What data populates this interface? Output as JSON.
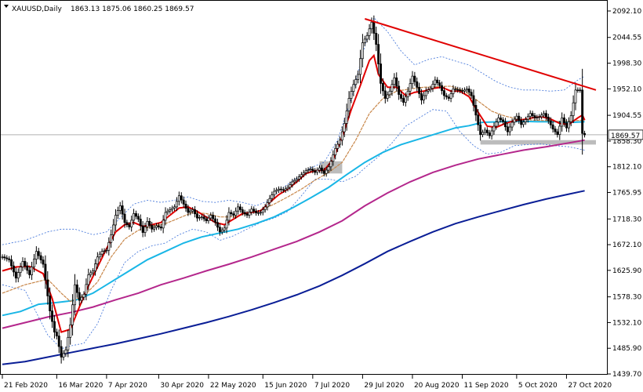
{
  "header": {
    "symbol": "XAUUSD,Daily",
    "ohlc": "1863.13 1875.06 1860.25 1869.57"
  },
  "chart_data": {
    "type": "line",
    "title": "",
    "xlabel": "",
    "ylabel": "",
    "instrument": "XAUUSD",
    "timeframe": "Daily",
    "last_price": 1869.57,
    "last_price_label": "1869.57",
    "ylim": [
      1439.7,
      2092.1
    ],
    "y_ticks": [
      "2092.10",
      "2044.55",
      "1998.30",
      "1952.10",
      "1904.55",
      "1858.30",
      "1812.10",
      "1765.95",
      "1718.30",
      "1672.10",
      "1625.90",
      "1578.30",
      "1532.10",
      "1485.90",
      "1439.70"
    ],
    "x_ticks": [
      {
        "label": "21 Feb 2020",
        "day": 0
      },
      {
        "label": "16 Mar 2020",
        "day": 24
      },
      {
        "label": "7 Apr 2020",
        "day": 46
      },
      {
        "label": "30 Apr 2020",
        "day": 69
      },
      {
        "label": "22 May 2020",
        "day": 91
      },
      {
        "label": "15 Jun 2020",
        "day": 115
      },
      {
        "label": "7 Jul 2020",
        "day": 137
      },
      {
        "label": "29 Jul 2020",
        "day": 159
      },
      {
        "label": "20 Aug 2020",
        "day": 181
      },
      {
        "label": "11 Sep 2020",
        "day": 203
      },
      {
        "label": "5 Oct 2020",
        "day": 227
      },
      {
        "label": "27 Oct 2020",
        "day": 249
      }
    ],
    "xlim_days": [
      0,
      262
    ],
    "colors": {
      "candle": "#000000",
      "ma_fast": "#e00000",
      "ma_mid": "#c8874a",
      "ma_50": "#19b6e6",
      "ma_100": "#b4278c",
      "ma_200": "#0a1e96",
      "bollinger": "#3a6fd8",
      "trendline": "#e00000",
      "zone": "#b8b8b8",
      "price_line": "#b0b0b0"
    },
    "close_path": [
      [
        0,
        1650
      ],
      [
        3,
        1645
      ],
      [
        6,
        1612
      ],
      [
        9,
        1642
      ],
      [
        12,
        1618
      ],
      [
        15,
        1660
      ],
      [
        18,
        1637
      ],
      [
        20,
        1580
      ],
      [
        21,
        1553
      ],
      [
        23,
        1515
      ],
      [
        24,
        1508
      ],
      [
        26,
        1470
      ],
      [
        28,
        1483
      ],
      [
        30,
        1528
      ],
      [
        32,
        1600
      ],
      [
        34,
        1572
      ],
      [
        36,
        1583
      ],
      [
        38,
        1618
      ],
      [
        40,
        1625
      ],
      [
        42,
        1650
      ],
      [
        44,
        1660
      ],
      [
        46,
        1662
      ],
      [
        48,
        1690
      ],
      [
        50,
        1725
      ],
      [
        52,
        1742
      ],
      [
        54,
        1712
      ],
      [
        56,
        1704
      ],
      [
        58,
        1728
      ],
      [
        60,
        1718
      ],
      [
        62,
        1694
      ],
      [
        64,
        1714
      ],
      [
        66,
        1700
      ],
      [
        68,
        1706
      ],
      [
        70,
        1702
      ],
      [
        72,
        1730
      ],
      [
        74,
        1735
      ],
      [
        76,
        1740
      ],
      [
        78,
        1760
      ],
      [
        80,
        1745
      ],
      [
        82,
        1730
      ],
      [
        84,
        1735
      ],
      [
        86,
        1720
      ],
      [
        88,
        1722
      ],
      [
        90,
        1715
      ],
      [
        92,
        1725
      ],
      [
        94,
        1712
      ],
      [
        96,
        1695
      ],
      [
        98,
        1702
      ],
      [
        100,
        1730
      ],
      [
        102,
        1725
      ],
      [
        104,
        1740
      ],
      [
        106,
        1730
      ],
      [
        108,
        1725
      ],
      [
        110,
        1736
      ],
      [
        112,
        1729
      ],
      [
        114,
        1730
      ],
      [
        116,
        1740
      ],
      [
        118,
        1755
      ],
      [
        120,
        1768
      ],
      [
        122,
        1772
      ],
      [
        124,
        1770
      ],
      [
        126,
        1775
      ],
      [
        128,
        1785
      ],
      [
        130,
        1790
      ],
      [
        132,
        1798
      ],
      [
        134,
        1805
      ],
      [
        136,
        1808
      ],
      [
        138,
        1802
      ],
      [
        140,
        1810
      ],
      [
        142,
        1800
      ],
      [
        144,
        1812
      ],
      [
        145,
        1822
      ],
      [
        147,
        1845
      ],
      [
        149,
        1860
      ],
      [
        151,
        1890
      ],
      [
        153,
        1935
      ],
      [
        155,
        1960
      ],
      [
        157,
        1978
      ],
      [
        159,
        2035
      ],
      [
        161,
        2048
      ],
      [
        163,
        2072
      ],
      [
        165,
        2032
      ],
      [
        167,
        1962
      ],
      [
        169,
        1935
      ],
      [
        171,
        1948
      ],
      [
        173,
        1972
      ],
      [
        175,
        1942
      ],
      [
        177,
        1928
      ],
      [
        179,
        1948
      ],
      [
        181,
        1975
      ],
      [
        183,
        1955
      ],
      [
        185,
        1932
      ],
      [
        187,
        1948
      ],
      [
        189,
        1953
      ],
      [
        191,
        1968
      ],
      [
        193,
        1958
      ],
      [
        195,
        1940
      ],
      [
        197,
        1935
      ],
      [
        199,
        1952
      ],
      [
        201,
        1950
      ],
      [
        203,
        1948
      ],
      [
        205,
        1952
      ],
      [
        207,
        1940
      ],
      [
        209,
        1905
      ],
      [
        211,
        1870
      ],
      [
        213,
        1878
      ],
      [
        215,
        1868
      ],
      [
        217,
        1885
      ],
      [
        219,
        1900
      ],
      [
        221,
        1893
      ],
      [
        223,
        1875
      ],
      [
        225,
        1892
      ],
      [
        227,
        1903
      ],
      [
        229,
        1888
      ],
      [
        231,
        1897
      ],
      [
        233,
        1908
      ],
      [
        235,
        1900
      ],
      [
        237,
        1902
      ],
      [
        239,
        1908
      ],
      [
        241,
        1895
      ],
      [
        243,
        1880
      ],
      [
        245,
        1870
      ],
      [
        247,
        1900
      ],
      [
        249,
        1882
      ],
      [
        251,
        1904
      ],
      [
        253,
        1950
      ],
      [
        255,
        1950
      ],
      [
        256,
        1872
      ],
      [
        257,
        1869.57
      ]
    ],
    "ma_fast_path": [
      [
        0,
        1625
      ],
      [
        6,
        1632
      ],
      [
        12,
        1633
      ],
      [
        18,
        1620
      ],
      [
        22,
        1575
      ],
      [
        26,
        1515
      ],
      [
        30,
        1520
      ],
      [
        34,
        1560
      ],
      [
        38,
        1598
      ],
      [
        42,
        1632
      ],
      [
        46,
        1665
      ],
      [
        50,
        1695
      ],
      [
        54,
        1708
      ],
      [
        58,
        1712
      ],
      [
        62,
        1705
      ],
      [
        66,
        1708
      ],
      [
        70,
        1712
      ],
      [
        74,
        1725
      ],
      [
        78,
        1738
      ],
      [
        82,
        1740
      ],
      [
        86,
        1732
      ],
      [
        90,
        1722
      ],
      [
        94,
        1712
      ],
      [
        98,
        1708
      ],
      [
        102,
        1718
      ],
      [
        106,
        1728
      ],
      [
        110,
        1730
      ],
      [
        114,
        1733
      ],
      [
        118,
        1748
      ],
      [
        122,
        1762
      ],
      [
        126,
        1772
      ],
      [
        130,
        1785
      ],
      [
        134,
        1800
      ],
      [
        138,
        1805
      ],
      [
        142,
        1806
      ],
      [
        146,
        1825
      ],
      [
        150,
        1866
      ],
      [
        154,
        1915
      ],
      [
        158,
        1958
      ],
      [
        162,
        2003
      ],
      [
        164,
        2012
      ],
      [
        166,
        1978
      ],
      [
        170,
        1955
      ],
      [
        174,
        1955
      ],
      [
        178,
        1940
      ],
      [
        182,
        1946
      ],
      [
        186,
        1948
      ],
      [
        190,
        1953
      ],
      [
        194,
        1955
      ],
      [
        198,
        1948
      ],
      [
        202,
        1948
      ],
      [
        206,
        1938
      ],
      [
        210,
        1910
      ],
      [
        214,
        1885
      ],
      [
        218,
        1883
      ],
      [
        222,
        1890
      ],
      [
        226,
        1895
      ],
      [
        230,
        1897
      ],
      [
        234,
        1900
      ],
      [
        238,
        1902
      ],
      [
        242,
        1898
      ],
      [
        246,
        1890
      ],
      [
        250,
        1888
      ],
      [
        254,
        1900
      ],
      [
        256,
        1905
      ],
      [
        257,
        1896
      ]
    ],
    "ma_mid_path": [
      [
        0,
        1585
      ],
      [
        10,
        1600
      ],
      [
        20,
        1610
      ],
      [
        26,
        1585
      ],
      [
        30,
        1570
      ],
      [
        36,
        1580
      ],
      [
        42,
        1605
      ],
      [
        48,
        1650
      ],
      [
        54,
        1682
      ],
      [
        60,
        1698
      ],
      [
        66,
        1705
      ],
      [
        72,
        1710
      ],
      [
        78,
        1720
      ],
      [
        84,
        1730
      ],
      [
        90,
        1728
      ],
      [
        96,
        1722
      ],
      [
        102,
        1722
      ],
      [
        108,
        1728
      ],
      [
        114,
        1734
      ],
      [
        120,
        1745
      ],
      [
        126,
        1758
      ],
      [
        132,
        1772
      ],
      [
        138,
        1788
      ],
      [
        144,
        1802
      ],
      [
        150,
        1820
      ],
      [
        156,
        1860
      ],
      [
        162,
        1908
      ],
      [
        168,
        1935
      ],
      [
        174,
        1948
      ],
      [
        180,
        1952
      ],
      [
        186,
        1955
      ],
      [
        192,
        1956
      ],
      [
        198,
        1957
      ],
      [
        204,
        1948
      ],
      [
        210,
        1930
      ],
      [
        216,
        1912
      ],
      [
        222,
        1903
      ],
      [
        228,
        1898
      ],
      [
        234,
        1896
      ],
      [
        240,
        1895
      ],
      [
        246,
        1893
      ],
      [
        252,
        1895
      ],
      [
        257,
        1896
      ]
    ],
    "ma_50_path": [
      [
        0,
        1545
      ],
      [
        8,
        1552
      ],
      [
        16,
        1565
      ],
      [
        24,
        1568
      ],
      [
        32,
        1572
      ],
      [
        40,
        1585
      ],
      [
        48,
        1605
      ],
      [
        56,
        1625
      ],
      [
        64,
        1645
      ],
      [
        72,
        1660
      ],
      [
        80,
        1675
      ],
      [
        88,
        1686
      ],
      [
        96,
        1693
      ],
      [
        104,
        1700
      ],
      [
        112,
        1710
      ],
      [
        120,
        1722
      ],
      [
        128,
        1738
      ],
      [
        136,
        1756
      ],
      [
        144,
        1775
      ],
      [
        152,
        1798
      ],
      [
        160,
        1820
      ],
      [
        168,
        1838
      ],
      [
        176,
        1852
      ],
      [
        184,
        1862
      ],
      [
        192,
        1872
      ],
      [
        200,
        1882
      ],
      [
        206,
        1886
      ],
      [
        212,
        1892
      ],
      [
        220,
        1893
      ],
      [
        228,
        1894
      ],
      [
        236,
        1893
      ],
      [
        244,
        1893
      ],
      [
        252,
        1892
      ],
      [
        257,
        1893
      ]
    ],
    "ma_100_path": [
      [
        0,
        1522
      ],
      [
        10,
        1532
      ],
      [
        20,
        1542
      ],
      [
        30,
        1550
      ],
      [
        40,
        1560
      ],
      [
        50,
        1573
      ],
      [
        60,
        1585
      ],
      [
        70,
        1600
      ],
      [
        80,
        1612
      ],
      [
        90,
        1625
      ],
      [
        100,
        1637
      ],
      [
        110,
        1650
      ],
      [
        120,
        1664
      ],
      [
        130,
        1678
      ],
      [
        140,
        1695
      ],
      [
        150,
        1715
      ],
      [
        160,
        1742
      ],
      [
        170,
        1765
      ],
      [
        180,
        1785
      ],
      [
        190,
        1802
      ],
      [
        200,
        1815
      ],
      [
        210,
        1826
      ],
      [
        220,
        1834
      ],
      [
        230,
        1842
      ],
      [
        240,
        1848
      ],
      [
        250,
        1855
      ],
      [
        257,
        1860
      ]
    ],
    "ma_200_path": [
      [
        0,
        1457
      ],
      [
        10,
        1462
      ],
      [
        20,
        1470
      ],
      [
        30,
        1478
      ],
      [
        40,
        1486
      ],
      [
        50,
        1494
      ],
      [
        60,
        1503
      ],
      [
        70,
        1512
      ],
      [
        80,
        1522
      ],
      [
        90,
        1532
      ],
      [
        100,
        1543
      ],
      [
        110,
        1555
      ],
      [
        120,
        1568
      ],
      [
        130,
        1582
      ],
      [
        140,
        1598
      ],
      [
        150,
        1617
      ],
      [
        160,
        1638
      ],
      [
        170,
        1660
      ],
      [
        180,
        1678
      ],
      [
        190,
        1695
      ],
      [
        200,
        1710
      ],
      [
        210,
        1722
      ],
      [
        220,
        1733
      ],
      [
        230,
        1744
      ],
      [
        240,
        1754
      ],
      [
        250,
        1763
      ],
      [
        257,
        1769
      ]
    ],
    "bollinger_upper_path": [
      [
        0,
        1672
      ],
      [
        10,
        1680
      ],
      [
        20,
        1695
      ],
      [
        26,
        1700
      ],
      [
        32,
        1700
      ],
      [
        40,
        1690
      ],
      [
        46,
        1695
      ],
      [
        52,
        1720
      ],
      [
        58,
        1745
      ],
      [
        64,
        1752
      ],
      [
        70,
        1748
      ],
      [
        76,
        1752
      ],
      [
        82,
        1758
      ],
      [
        88,
        1750
      ],
      [
        94,
        1748
      ],
      [
        100,
        1752
      ],
      [
        106,
        1748
      ],
      [
        112,
        1742
      ],
      [
        118,
        1752
      ],
      [
        124,
        1775
      ],
      [
        130,
        1792
      ],
      [
        136,
        1810
      ],
      [
        142,
        1820
      ],
      [
        148,
        1860
      ],
      [
        154,
        1935
      ],
      [
        160,
        2030
      ],
      [
        164,
        2080
      ],
      [
        170,
        2055
      ],
      [
        176,
        2020
      ],
      [
        182,
        1995
      ],
      [
        188,
        2005
      ],
      [
        194,
        2010
      ],
      [
        200,
        2002
      ],
      [
        206,
        1995
      ],
      [
        212,
        1980
      ],
      [
        218,
        1965
      ],
      [
        224,
        1955
      ],
      [
        230,
        1950
      ],
      [
        236,
        1950
      ],
      [
        242,
        1948
      ],
      [
        248,
        1950
      ],
      [
        254,
        1968
      ],
      [
        257,
        1975
      ]
    ],
    "bollinger_lower_path": [
      [
        0,
        1600
      ],
      [
        10,
        1590
      ],
      [
        20,
        1510
      ],
      [
        26,
        1485
      ],
      [
        30,
        1490
      ],
      [
        36,
        1495
      ],
      [
        42,
        1530
      ],
      [
        48,
        1590
      ],
      [
        54,
        1640
      ],
      [
        60,
        1660
      ],
      [
        66,
        1670
      ],
      [
        72,
        1675
      ],
      [
        78,
        1690
      ],
      [
        84,
        1700
      ],
      [
        90,
        1695
      ],
      [
        96,
        1680
      ],
      [
        102,
        1688
      ],
      [
        108,
        1700
      ],
      [
        114,
        1712
      ],
      [
        120,
        1720
      ],
      [
        126,
        1732
      ],
      [
        132,
        1760
      ],
      [
        138,
        1790
      ],
      [
        144,
        1790
      ],
      [
        150,
        1785
      ],
      [
        156,
        1795
      ],
      [
        160,
        1810
      ],
      [
        166,
        1830
      ],
      [
        172,
        1855
      ],
      [
        178,
        1885
      ],
      [
        184,
        1900
      ],
      [
        190,
        1915
      ],
      [
        196,
        1912
      ],
      [
        202,
        1875
      ],
      [
        208,
        1850
      ],
      [
        214,
        1835
      ],
      [
        220,
        1838
      ],
      [
        226,
        1850
      ],
      [
        232,
        1852
      ],
      [
        238,
        1853
      ],
      [
        244,
        1850
      ],
      [
        250,
        1848
      ],
      [
        257,
        1842
      ]
    ],
    "trendline": {
      "from": [
        160,
        2078
      ],
      "to": [
        262,
        1950
      ]
    },
    "zones": [
      {
        "x0": 140,
        "x1": 150,
        "y0": 1800,
        "y1": 1822
      },
      {
        "x0": 211,
        "x1": 262,
        "y0": 1852,
        "y1": 1860
      }
    ]
  }
}
